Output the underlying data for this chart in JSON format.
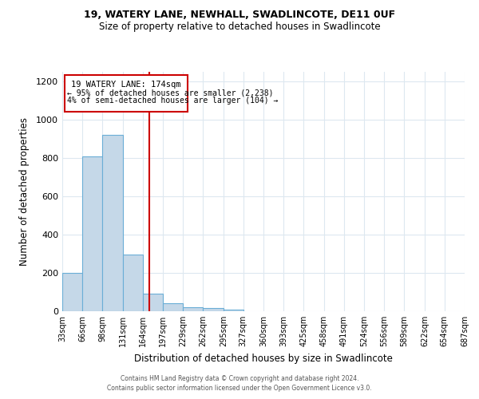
{
  "title": "19, WATERY LANE, NEWHALL, SWADLINCOTE, DE11 0UF",
  "subtitle": "Size of property relative to detached houses in Swadlincote",
  "xlabel": "Distribution of detached houses by size in Swadlincote",
  "ylabel": "Number of detached properties",
  "bar_edges": [
    33,
    66,
    98,
    131,
    164,
    197,
    229,
    262,
    295,
    327,
    360,
    393,
    425,
    458,
    491,
    524,
    556,
    589,
    622,
    654,
    687
  ],
  "bar_heights": [
    200,
    810,
    920,
    295,
    90,
    40,
    20,
    15,
    10,
    0,
    0,
    0,
    0,
    0,
    0,
    0,
    0,
    0,
    0,
    0
  ],
  "bar_color": "#c5d8e8",
  "bar_edge_color": "#6aaed6",
  "red_line_x": 174,
  "red_line_color": "#cc0000",
  "annotation_title": "19 WATERY LANE: 174sqm",
  "annotation_line1": "← 95% of detached houses are smaller (2,238)",
  "annotation_line2": "4% of semi-detached houses are larger (104) →",
  "annotation_box_color": "#cc0000",
  "ylim": [
    0,
    1250
  ],
  "yticks": [
    0,
    200,
    400,
    600,
    800,
    1000,
    1200
  ],
  "footer_line1": "Contains HM Land Registry data © Crown copyright and database right 2024.",
  "footer_line2": "Contains public sector information licensed under the Open Government Licence v3.0.",
  "background_color": "#ffffff",
  "grid_color": "#dde8f0"
}
